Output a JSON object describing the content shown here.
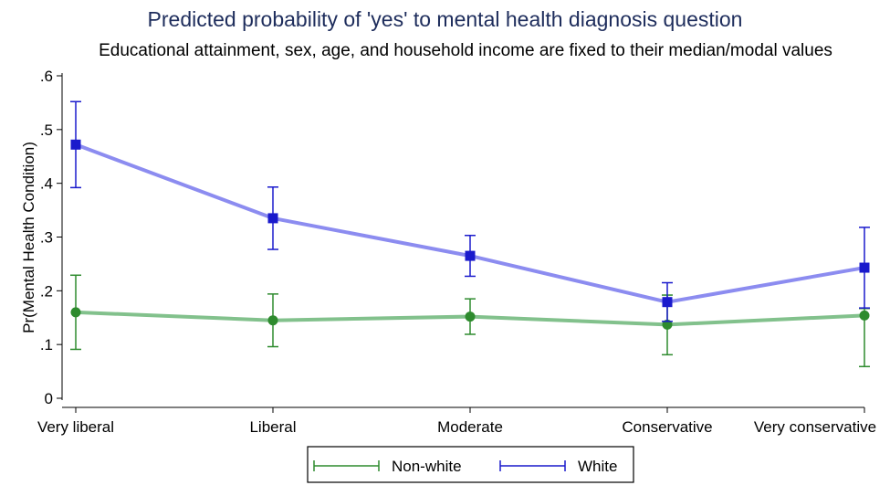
{
  "chart_data": {
    "type": "line",
    "title": "Predicted probability of 'yes' to mental health diagnosis question",
    "subtitle": "Educational attainment, sex, age, and household income are fixed to their median/modal values",
    "xlabel": "",
    "ylabel": "Pr(Mental Health Condition)",
    "categories": [
      "Very liberal",
      "Liberal",
      "Moderate",
      "Conservative",
      "Very conservative"
    ],
    "yticks": [
      0,
      0.1,
      0.2,
      0.3,
      0.4,
      0.5,
      0.6
    ],
    "ytick_labels": [
      "0",
      ".1",
      ".2",
      ".3",
      ".4",
      ".5",
      ".6"
    ],
    "ylim": [
      0,
      0.6
    ],
    "grid": false,
    "legend_position": "bottom",
    "series": [
      {
        "name": "Non-white",
        "color": "#2e8b2e",
        "line_color": "#82c18c",
        "marker": "circle",
        "values": [
          0.16,
          0.145,
          0.152,
          0.137,
          0.154
        ],
        "ci_low": [
          0.091,
          0.096,
          0.119,
          0.081,
          0.059
        ],
        "ci_high": [
          0.229,
          0.194,
          0.185,
          0.192,
          0.167
        ]
      },
      {
        "name": "White",
        "color": "#1a1acc",
        "line_color": "#8c8cf0",
        "marker": "square",
        "values": [
          0.472,
          0.335,
          0.265,
          0.179,
          0.243
        ],
        "ci_low": [
          0.392,
          0.277,
          0.227,
          0.143,
          0.168
        ],
        "ci_high": [
          0.552,
          0.393,
          0.303,
          0.215,
          0.318
        ]
      }
    ]
  }
}
